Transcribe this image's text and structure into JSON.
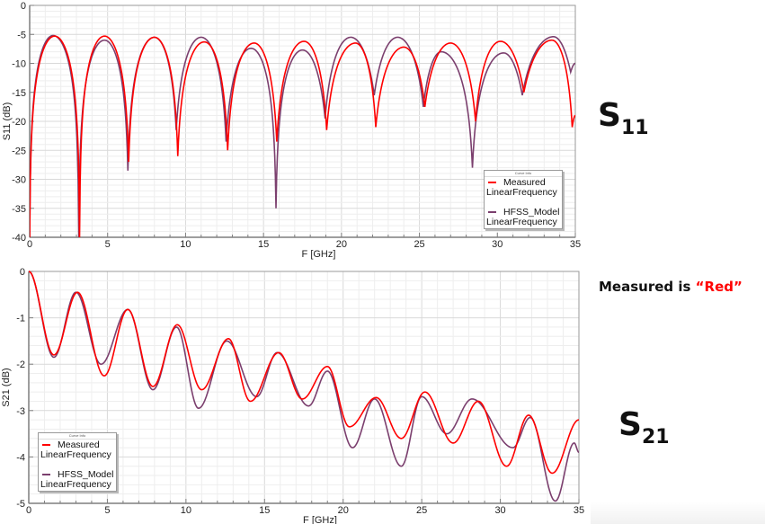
{
  "annotations": {
    "s11_label_main": "S",
    "s11_label_sub": "11",
    "s21_label_main": "S",
    "s21_label_sub": "21",
    "note_prefix": "Measured is ",
    "note_highlight": "“Red”",
    "note_highlight_color": "#ff0000"
  },
  "colors": {
    "measured": "#ff0000",
    "hfss_model": "#7b3f6e",
    "grid_major": "#d9d9d9",
    "grid_minor": "#eeeeee",
    "axis": "#7f7f7f"
  },
  "chart_data": [
    {
      "type": "line",
      "title": "S11",
      "xlabel": "F [GHz]",
      "ylabel": "S11 (dB)",
      "xlim": [
        0,
        35
      ],
      "ylim": [
        -40,
        0
      ],
      "xticks": [
        0,
        5,
        10,
        15,
        20,
        25,
        30,
        35
      ],
      "yticks": [
        0,
        -5,
        -10,
        -15,
        -20,
        -25,
        -30,
        -35,
        -40
      ],
      "grid": true,
      "legend": {
        "title": "Curve Info",
        "position": "lower right",
        "entries": [
          {
            "name": "Measured",
            "sub": "LinearFrequency"
          },
          {
            "name": "HFSS_Model",
            "sub": "LinearFrequency"
          }
        ]
      },
      "series": [
        {
          "name": "Measured",
          "x": [
            0.0,
            1.6,
            3.2,
            4.8,
            6.35,
            8.0,
            9.5,
            11.2,
            12.7,
            14.4,
            15.85,
            17.6,
            19.05,
            20.9,
            22.2,
            24.0,
            25.35,
            27.0,
            28.6,
            30.2,
            31.7,
            33.5,
            34.8,
            35.0
          ],
          "y": [
            -40,
            -5.3,
            -40,
            -5.3,
            -27,
            -5.5,
            -26,
            -6.3,
            -25,
            -6.5,
            -23.5,
            -6.2,
            -21.5,
            -6.5,
            -21,
            -7.2,
            -17.5,
            -6.5,
            -20,
            -6.2,
            -15,
            -6.0,
            -21,
            -19
          ]
        },
        {
          "name": "HFSS_Model",
          "x": [
            0.0,
            1.5,
            3.15,
            4.8,
            6.3,
            8.0,
            9.4,
            11.0,
            12.6,
            14.2,
            15.8,
            17.5,
            18.95,
            20.6,
            22.1,
            23.6,
            25.25,
            26.4,
            28.4,
            30.4,
            31.6,
            33.6,
            34.7,
            35.0
          ],
          "y": [
            -40,
            -5.2,
            -40,
            -6.0,
            -28.5,
            -5.5,
            -21.5,
            -5.5,
            -23.5,
            -7.4,
            -35,
            -7.7,
            -19.5,
            -5.5,
            -15.5,
            -5.5,
            -17.5,
            -8.0,
            -28,
            -8.2,
            -15.5,
            -5.4,
            -11.5,
            -10.0
          ]
        }
      ]
    },
    {
      "type": "line",
      "title": "S21",
      "xlabel": "F [GHz]",
      "ylabel": "S21 (dB)",
      "xlim": [
        0,
        35
      ],
      "ylim": [
        -5,
        0
      ],
      "xticks": [
        0,
        5,
        10,
        15,
        20,
        25,
        30,
        35
      ],
      "yticks": [
        0,
        -1,
        -2,
        -3,
        -4,
        -5
      ],
      "grid": true,
      "legend": {
        "title": "Curve Info",
        "position": "lower left",
        "entries": [
          {
            "name": "Measured",
            "sub": "LinearFrequency"
          },
          {
            "name": "HFSS_Model",
            "sub": "LinearFrequency"
          }
        ]
      },
      "series": [
        {
          "name": "Measured",
          "x": [
            0.0,
            1.6,
            3.1,
            4.8,
            6.3,
            7.9,
            9.45,
            11.0,
            12.7,
            14.1,
            15.9,
            17.4,
            19.0,
            20.4,
            22.1,
            23.7,
            25.2,
            27.0,
            28.6,
            30.4,
            31.8,
            33.3,
            35.0
          ],
          "y": [
            0.0,
            -1.8,
            -0.45,
            -2.25,
            -0.82,
            -2.48,
            -1.15,
            -2.55,
            -1.45,
            -2.8,
            -1.75,
            -2.75,
            -2.05,
            -3.35,
            -2.72,
            -3.6,
            -2.6,
            -3.7,
            -2.8,
            -4.2,
            -3.1,
            -4.35,
            -3.2
          ]
        },
        {
          "name": "HFSS_Model",
          "x": [
            0.0,
            1.6,
            3.0,
            4.6,
            6.3,
            7.9,
            9.4,
            10.8,
            12.6,
            14.5,
            15.8,
            17.8,
            19.0,
            20.6,
            22.0,
            23.7,
            25.0,
            26.6,
            28.2,
            30.8,
            31.9,
            33.5,
            34.7,
            35.0
          ],
          "y": [
            0.0,
            -1.85,
            -0.45,
            -2.0,
            -0.82,
            -2.55,
            -1.2,
            -2.95,
            -1.5,
            -2.7,
            -1.75,
            -2.9,
            -2.15,
            -3.8,
            -2.75,
            -4.2,
            -2.7,
            -3.5,
            -2.75,
            -3.8,
            -3.15,
            -4.95,
            -3.7,
            -3.9
          ]
        }
      ]
    }
  ]
}
